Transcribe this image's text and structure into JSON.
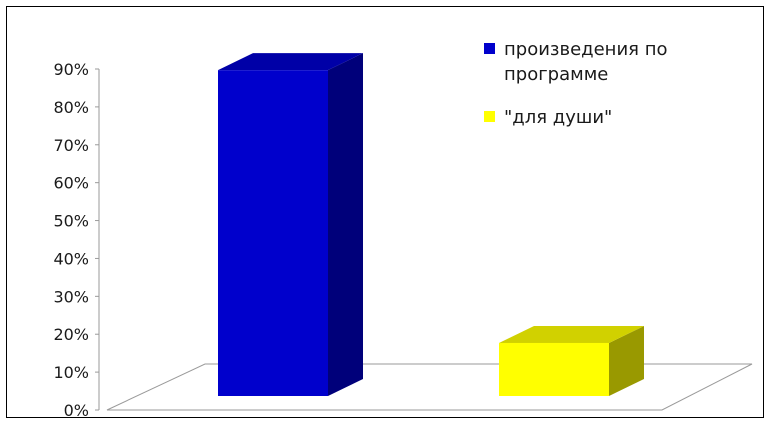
{
  "chart_data": {
    "type": "bar",
    "categories": [
      "",
      ""
    ],
    "series": [
      {
        "name": "произведения по программе",
        "value": 86,
        "color": "#0000cc"
      },
      {
        "name": "\"для души\"",
        "value": 14,
        "color": "#ffff00"
      }
    ],
    "ylim": [
      0,
      90
    ],
    "yticks": [
      "0%",
      "10%",
      "20%",
      "30%",
      "40%",
      "50%",
      "60%",
      "70%",
      "80%",
      "90%"
    ],
    "title": "",
    "xlabel": "",
    "ylabel": "",
    "legend": {
      "position": "top-right",
      "entries": [
        "произведения по",
        "программе",
        "\"для души\""
      ]
    },
    "style": "3d-column",
    "grid": false
  }
}
